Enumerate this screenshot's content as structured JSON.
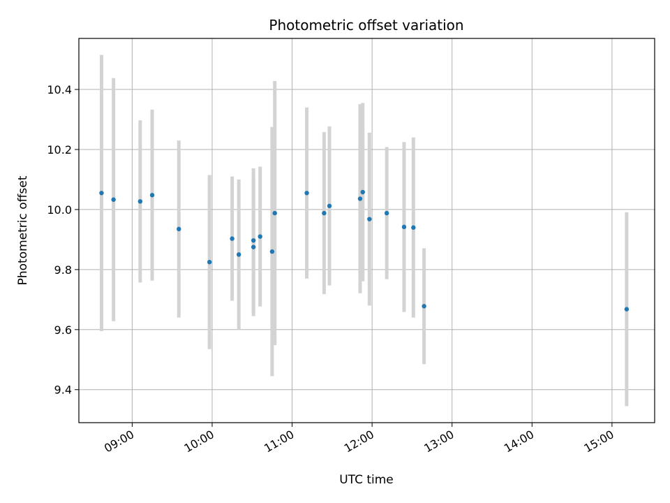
{
  "chart_data": {
    "type": "scatter",
    "title": "Photometric offset variation",
    "xlabel": "UTC time",
    "ylabel": "Photometric offset",
    "x_ticks": [
      "09:00",
      "10:00",
      "11:00",
      "12:00",
      "13:00",
      "14:00",
      "15:00"
    ],
    "y_ticks": [
      "9.4",
      "9.6",
      "9.8",
      "10.0",
      "10.2",
      "10.4"
    ],
    "xlim": [
      "08:20",
      "15:32"
    ],
    "ylim": [
      9.29,
      10.57
    ],
    "grid": true,
    "point_color": "#1f77b4",
    "errorbar_color": "#d3d3d3",
    "points": [
      {
        "time": "08:37",
        "value": 10.055,
        "err": 0.46
      },
      {
        "time": "08:46",
        "value": 10.033,
        "err": 0.405
      },
      {
        "time": "09:06",
        "value": 10.027,
        "err": 0.27
      },
      {
        "time": "09:15",
        "value": 10.048,
        "err": 0.285
      },
      {
        "time": "09:35",
        "value": 9.935,
        "err": 0.295
      },
      {
        "time": "09:58",
        "value": 9.825,
        "err": 0.29
      },
      {
        "time": "10:15",
        "value": 9.903,
        "err": 0.207
      },
      {
        "time": "10:20",
        "value": 9.85,
        "err": 0.25
      },
      {
        "time": "10:31",
        "value": 9.875,
        "err": 0.23
      },
      {
        "time": "10:31",
        "value": 9.897,
        "err": 0.24
      },
      {
        "time": "10:36",
        "value": 9.91,
        "err": 0.233
      },
      {
        "time": "10:45",
        "value": 9.86,
        "err": 0.415
      },
      {
        "time": "10:47",
        "value": 9.988,
        "err": 0.44
      },
      {
        "time": "11:11",
        "value": 10.055,
        "err": 0.285
      },
      {
        "time": "11:24",
        "value": 9.988,
        "err": 0.27
      },
      {
        "time": "11:28",
        "value": 10.012,
        "err": 0.265
      },
      {
        "time": "11:51",
        "value": 10.036,
        "err": 0.315
      },
      {
        "time": "11:53",
        "value": 10.058,
        "err": 0.297
      },
      {
        "time": "11:58",
        "value": 9.968,
        "err": 0.288
      },
      {
        "time": "12:11",
        "value": 9.988,
        "err": 0.22
      },
      {
        "time": "12:24",
        "value": 9.942,
        "err": 0.283
      },
      {
        "time": "12:31",
        "value": 9.94,
        "err": 0.3
      },
      {
        "time": "12:39",
        "value": 9.678,
        "err": 0.193
      },
      {
        "time": "15:11",
        "value": 9.668,
        "err": 0.323
      }
    ]
  }
}
